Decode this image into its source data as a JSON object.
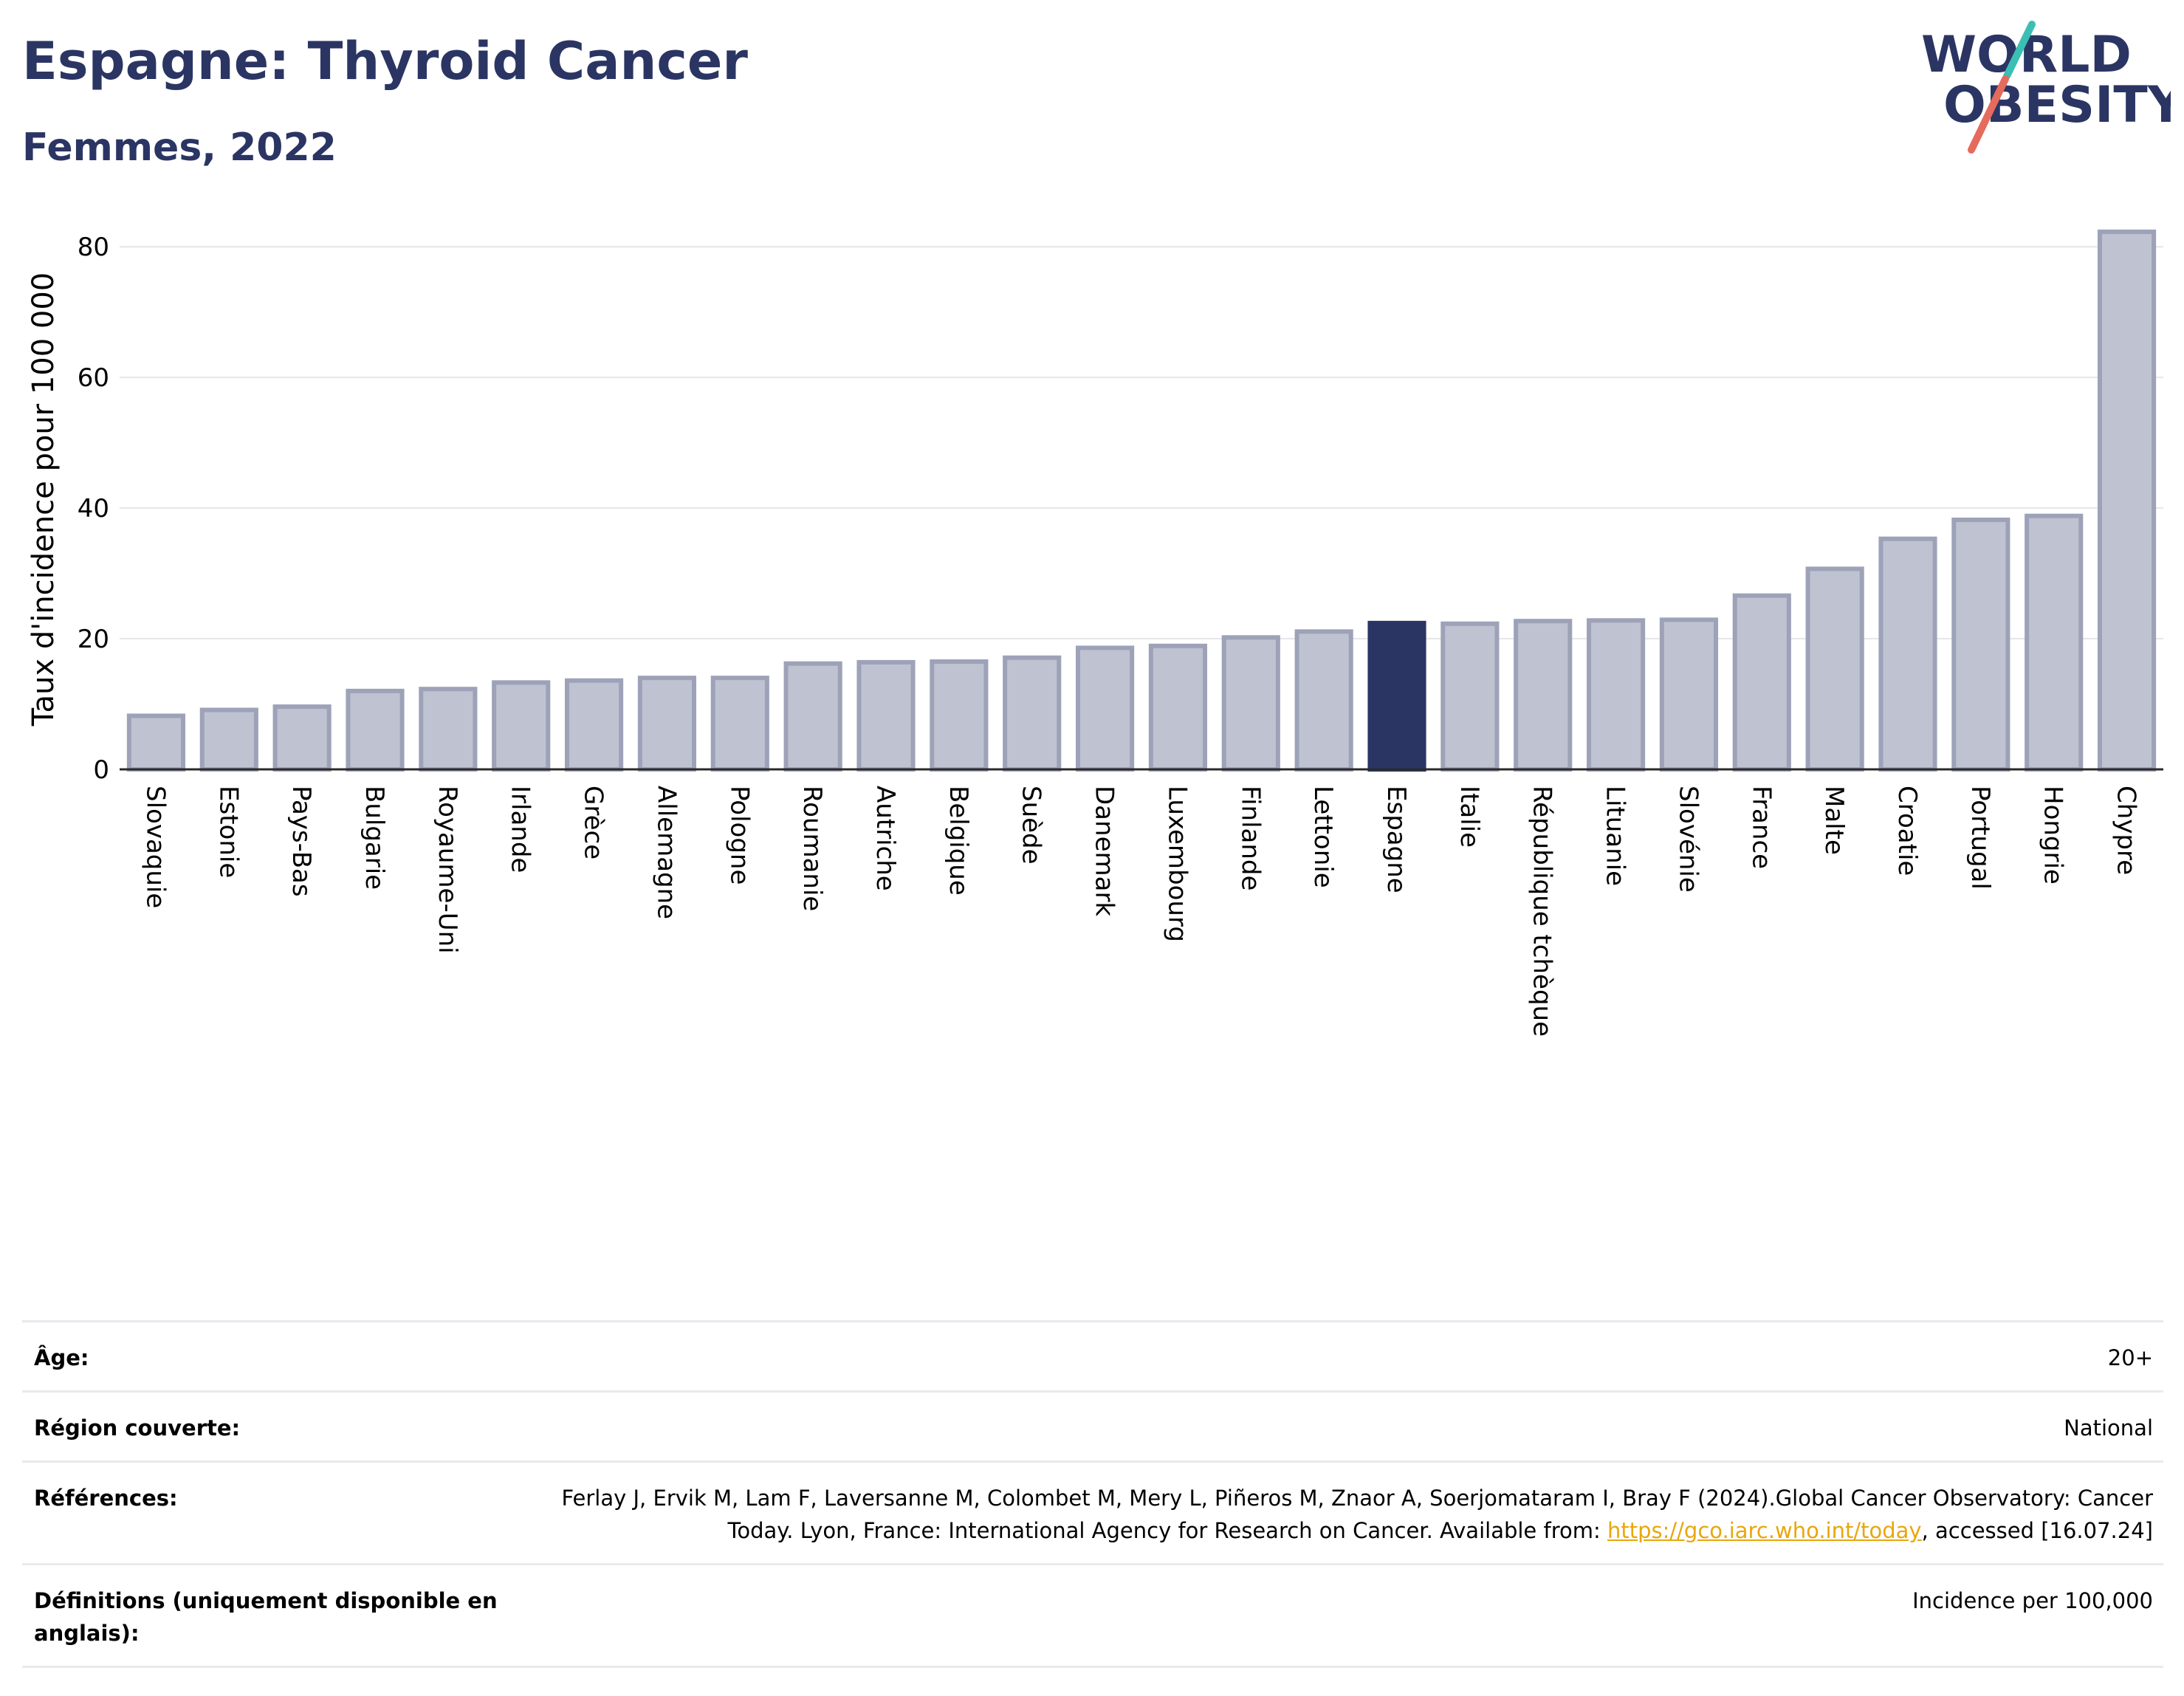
{
  "title": "Espagne: Thyroid Cancer",
  "subtitle": "Femmes, 2022",
  "logo": {
    "line1": "WORLD",
    "line2": "OBESITY"
  },
  "colors": {
    "highlight": "#2b3563",
    "bar_fill": "#bfc2d0",
    "bar_stroke": "#9da2b8",
    "grid": "#e6e6ea",
    "logo_teal": "#3bbfb4",
    "logo_red": "#e56b5d",
    "link": "#e8a70c"
  },
  "chart_data": {
    "type": "bar",
    "title": "Espagne: Thyroid Cancer",
    "subtitle": "Femmes, 2022",
    "ylabel": "Taux d'incidence pour 100 000",
    "xlabel": "",
    "ylim": [
      0,
      85
    ],
    "yticks": [
      0,
      20,
      40,
      60,
      80
    ],
    "grid": true,
    "highlight_category": "Espagne",
    "categories": [
      "Slovaquie",
      "Estonie",
      "Pays-Bas",
      "Bulgarie",
      "Royaume-Uni",
      "Irlande",
      "Grèce",
      "Allemagne",
      "Pologne",
      "Roumanie",
      "Autriche",
      "Belgique",
      "Suède",
      "Danemark",
      "Luxembourg",
      "Finlande",
      "Lettonie",
      "Espagne",
      "Italie",
      "République tchèque",
      "Lituanie",
      "Slovénie",
      "France",
      "Malte",
      "Croatie",
      "Portugal",
      "Hongrie",
      "Chypre"
    ],
    "values": [
      8.2,
      9.1,
      9.6,
      12.0,
      12.3,
      13.3,
      13.6,
      14.0,
      14.0,
      16.2,
      16.4,
      16.5,
      17.1,
      18.6,
      18.9,
      20.2,
      21.1,
      22.4,
      22.3,
      22.7,
      22.8,
      22.9,
      26.6,
      30.7,
      35.3,
      38.2,
      38.8,
      82.3
    ]
  },
  "meta": [
    {
      "key": "Âge:",
      "value": "20+"
    },
    {
      "key": "Région couverte:",
      "value": "National"
    },
    {
      "key": "Références:",
      "value": "Ferlay J, Ervik M, Lam F, Laversanne M, Colombet M, Mery L, Piñeros M, Znaor A, Soerjomataram I, Bray F (2024).Global Cancer Observatory: Cancer Today. Lyon, France: International Agency for Research on Cancer. Available from: ",
      "link": "https://gco.iarc.who.int/today",
      "suffix": ", accessed [16.07.24]"
    },
    {
      "key": "Définitions (uniquement disponible en anglais):",
      "value": "Incidence per 100,000"
    }
  ]
}
